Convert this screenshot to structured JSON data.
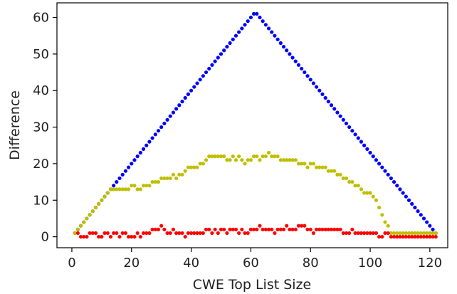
{
  "chart_data": {
    "type": "scatter",
    "xlabel": "CWE Top List Size",
    "ylabel": "Difference",
    "xlim": [
      -5,
      126
    ],
    "ylim": [
      -3,
      64
    ],
    "xticks": [
      0,
      20,
      40,
      60,
      80,
      100,
      120
    ],
    "yticks": [
      0,
      10,
      20,
      30,
      40,
      50,
      60
    ],
    "grid": false,
    "series": [
      {
        "color": "#0000ff",
        "x": [
          1,
          2,
          3,
          4,
          5,
          6,
          7,
          8,
          9,
          10,
          11,
          12,
          13,
          14,
          15,
          16,
          17,
          18,
          19,
          20,
          21,
          22,
          23,
          24,
          25,
          26,
          27,
          28,
          29,
          30,
          31,
          32,
          33,
          34,
          35,
          36,
          37,
          38,
          39,
          40,
          41,
          42,
          43,
          44,
          45,
          46,
          47,
          48,
          49,
          50,
          51,
          52,
          53,
          54,
          55,
          56,
          57,
          58,
          59,
          60,
          61,
          62,
          63,
          64,
          65,
          66,
          67,
          68,
          69,
          70,
          71,
          72,
          73,
          74,
          75,
          76,
          77,
          78,
          79,
          80,
          81,
          82,
          83,
          84,
          85,
          86,
          87,
          88,
          89,
          90,
          91,
          92,
          93,
          94,
          95,
          96,
          97,
          98,
          99,
          100,
          101,
          102,
          103,
          104,
          105,
          106,
          107,
          108,
          109,
          110,
          111,
          112,
          113,
          114,
          115,
          116,
          117,
          118,
          119,
          120,
          121,
          122
        ],
        "y": [
          1,
          2,
          3,
          4,
          5,
          6,
          7,
          8,
          9,
          10,
          11,
          12,
          13,
          14,
          15,
          16,
          17,
          18,
          19,
          20,
          21,
          22,
          23,
          24,
          25,
          26,
          27,
          28,
          29,
          30,
          31,
          32,
          33,
          34,
          35,
          36,
          37,
          38,
          39,
          40,
          41,
          42,
          43,
          44,
          45,
          46,
          47,
          48,
          49,
          50,
          51,
          52,
          53,
          54,
          55,
          56,
          57,
          58,
          59,
          60,
          61,
          61,
          60,
          59,
          58,
          57,
          56,
          55,
          54,
          53,
          52,
          51,
          50,
          49,
          48,
          47,
          46,
          45,
          44,
          43,
          42,
          41,
          40,
          39,
          38,
          37,
          36,
          35,
          34,
          33,
          32,
          31,
          30,
          29,
          28,
          27,
          26,
          25,
          24,
          23,
          22,
          21,
          20,
          19,
          18,
          17,
          16,
          15,
          14,
          13,
          12,
          11,
          10,
          9,
          8,
          7,
          6,
          5,
          4,
          3,
          2,
          1
        ]
      },
      {
        "color": "#bfbf00",
        "x": [
          1,
          2,
          3,
          4,
          5,
          6,
          7,
          8,
          9,
          10,
          11,
          12,
          13,
          14,
          15,
          16,
          17,
          18,
          19,
          20,
          21,
          22,
          23,
          24,
          25,
          26,
          27,
          28,
          29,
          30,
          31,
          32,
          33,
          34,
          35,
          36,
          37,
          38,
          39,
          40,
          41,
          42,
          43,
          44,
          45,
          46,
          47,
          48,
          49,
          50,
          51,
          52,
          53,
          54,
          55,
          56,
          57,
          58,
          59,
          60,
          61,
          62,
          63,
          64,
          65,
          66,
          67,
          68,
          69,
          70,
          71,
          72,
          73,
          74,
          75,
          76,
          77,
          78,
          79,
          80,
          81,
          82,
          83,
          84,
          85,
          86,
          87,
          88,
          89,
          90,
          91,
          92,
          93,
          94,
          95,
          96,
          97,
          98,
          99,
          100,
          101,
          102,
          103,
          104,
          105,
          106,
          107,
          108,
          109,
          110,
          111,
          112,
          113,
          114,
          115,
          116,
          117,
          118,
          119,
          120,
          121,
          122
        ],
        "y": [
          1,
          2,
          3,
          4,
          5,
          6,
          7,
          8,
          9,
          10,
          11,
          12,
          13,
          13,
          13,
          13,
          13,
          13,
          13,
          14,
          14,
          13,
          13,
          14,
          14,
          14,
          15,
          15,
          15,
          16,
          16,
          16,
          16,
          17,
          16,
          17,
          17,
          18,
          19,
          19,
          19,
          19,
          20,
          20,
          21,
          22,
          22,
          22,
          22,
          22,
          22,
          21,
          21,
          22,
          21,
          22,
          21,
          20,
          21,
          21,
          22,
          22,
          21,
          22,
          22,
          23,
          22,
          22,
          22,
          21,
          21,
          21,
          21,
          21,
          21,
          20,
          20,
          20,
          19,
          20,
          20,
          19,
          19,
          19,
          19,
          18,
          18,
          18,
          17,
          17,
          16,
          16,
          15,
          15,
          14,
          14,
          13,
          12,
          12,
          12,
          11,
          10,
          8,
          6,
          4,
          3,
          1,
          1,
          1,
          1,
          1,
          1,
          1,
          1,
          1,
          1,
          1,
          1,
          1,
          1,
          1,
          1
        ]
      },
      {
        "color": "#ff0000",
        "x": [
          2,
          3,
          4,
          5,
          6,
          7,
          8,
          9,
          10,
          11,
          12,
          13,
          14,
          15,
          16,
          17,
          18,
          19,
          20,
          21,
          22,
          23,
          24,
          25,
          26,
          27,
          28,
          29,
          30,
          31,
          32,
          33,
          34,
          35,
          36,
          37,
          38,
          39,
          40,
          41,
          42,
          43,
          44,
          45,
          46,
          47,
          48,
          49,
          50,
          51,
          52,
          53,
          54,
          55,
          56,
          57,
          58,
          59,
          60,
          61,
          62,
          63,
          64,
          65,
          66,
          67,
          68,
          69,
          70,
          71,
          72,
          73,
          74,
          75,
          76,
          77,
          78,
          79,
          80,
          81,
          82,
          83,
          84,
          85,
          86,
          87,
          88,
          89,
          90,
          91,
          92,
          93,
          94,
          95,
          96,
          97,
          98,
          99,
          100,
          101,
          102,
          103,
          104,
          105,
          106,
          107,
          108,
          109,
          110,
          111,
          112,
          113,
          114,
          115,
          116,
          117,
          118,
          119,
          120,
          121,
          122
        ],
        "y": [
          1,
          0,
          0,
          0,
          1,
          1,
          1,
          0,
          0,
          1,
          1,
          0,
          1,
          1,
          0,
          1,
          1,
          0,
          0,
          0,
          1,
          0,
          1,
          1,
          1,
          2,
          2,
          2,
          3,
          2,
          1,
          1,
          2,
          1,
          1,
          1,
          0,
          1,
          1,
          1,
          1,
          1,
          1,
          2,
          2,
          1,
          2,
          1,
          2,
          2,
          1,
          2,
          2,
          2,
          1,
          2,
          1,
          1,
          2,
          2,
          2,
          3,
          2,
          2,
          2,
          2,
          1,
          2,
          2,
          2,
          3,
          2,
          2,
          2,
          3,
          3,
          3,
          2,
          2,
          1,
          2,
          2,
          2,
          2,
          2,
          2,
          2,
          2,
          2,
          1,
          1,
          1,
          2,
          1,
          1,
          1,
          1,
          1,
          1,
          1,
          1,
          0,
          0,
          1,
          1,
          0,
          0,
          0,
          0,
          0,
          0,
          0,
          0,
          0,
          0,
          0,
          0,
          0,
          0,
          0,
          0
        ]
      }
    ]
  }
}
